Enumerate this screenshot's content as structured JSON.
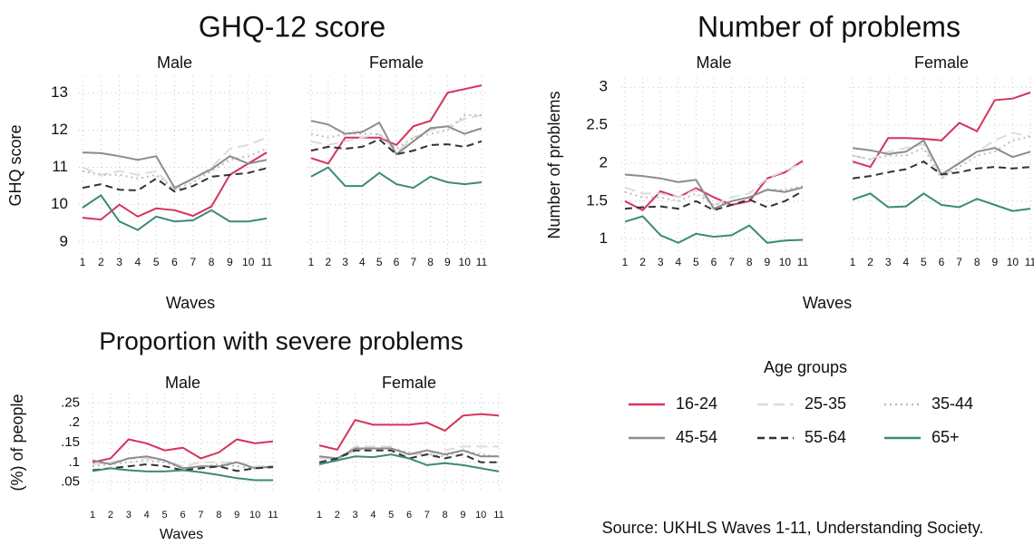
{
  "chart_data": [
    {
      "type": "line",
      "title": "GHQ-12 score",
      "ylabel": "GHQ score",
      "xlabel": "Waves",
      "x": [
        1,
        2,
        3,
        4,
        5,
        6,
        7,
        8,
        9,
        10,
        11
      ],
      "ylim": [
        8.8,
        13.3
      ],
      "yticks": [
        9,
        10,
        11,
        12,
        13
      ],
      "grid": true,
      "panels": [
        {
          "title": "Male",
          "series": [
            {
              "name": "16-24",
              "color": "#d6335a",
              "dash": "solid",
              "values": [
                9.65,
                9.6,
                10.0,
                9.68,
                9.9,
                9.85,
                9.7,
                9.95,
                10.8,
                11.1,
                11.4
              ]
            },
            {
              "name": "25-35",
              "color": "#dcdcdc",
              "dash": "long",
              "values": [
                11.0,
                10.8,
                10.9,
                10.8,
                10.9,
                10.4,
                10.7,
                11.0,
                11.5,
                11.6,
                11.8
              ]
            },
            {
              "name": "35-44",
              "color": "#bdbdbd",
              "dash": "dot",
              "values": [
                10.9,
                10.8,
                10.8,
                10.7,
                10.8,
                10.4,
                10.6,
                10.9,
                11.2,
                11.3,
                11.5
              ]
            },
            {
              "name": "45-54",
              "color": "#8c8c8c",
              "dash": "solid",
              "values": [
                11.4,
                11.38,
                11.3,
                11.2,
                11.3,
                10.45,
                10.7,
                10.95,
                11.3,
                11.1,
                11.2
              ]
            },
            {
              "name": "55-64",
              "color": "#333333",
              "dash": "dash",
              "values": [
                10.45,
                10.55,
                10.4,
                10.38,
                10.7,
                10.35,
                10.5,
                10.75,
                10.8,
                10.85,
                10.98
              ]
            },
            {
              "name": "65+",
              "color": "#3a8a7a",
              "dash": "solid",
              "values": [
                9.92,
                10.25,
                9.55,
                9.32,
                9.68,
                9.55,
                9.58,
                9.85,
                9.55,
                9.55,
                9.63
              ]
            }
          ]
        },
        {
          "title": "Female",
          "series": [
            {
              "name": "16-24",
              "color": "#d6335a",
              "dash": "solid",
              "values": [
                11.25,
                11.1,
                11.8,
                11.8,
                11.8,
                11.6,
                12.1,
                12.25,
                13.0,
                13.1,
                13.2
              ]
            },
            {
              "name": "25-35",
              "color": "#dcdcdc",
              "dash": "long",
              "values": [
                11.7,
                11.6,
                11.7,
                11.8,
                11.9,
                11.4,
                11.8,
                12.0,
                12.1,
                12.3,
                12.4
              ]
            },
            {
              "name": "35-44",
              "color": "#bdbdbd",
              "dash": "dot",
              "values": [
                11.9,
                11.8,
                11.9,
                11.9,
                11.9,
                11.5,
                11.8,
                11.9,
                12.0,
                12.4,
                12.4
              ]
            },
            {
              "name": "45-54",
              "color": "#8c8c8c",
              "dash": "solid",
              "values": [
                12.25,
                12.15,
                11.9,
                11.95,
                12.2,
                11.35,
                11.7,
                12.05,
                12.1,
                11.9,
                12.05
              ]
            },
            {
              "name": "55-64",
              "color": "#333333",
              "dash": "dash",
              "values": [
                11.45,
                11.55,
                11.5,
                11.55,
                11.75,
                11.35,
                11.45,
                11.6,
                11.62,
                11.55,
                11.7
              ]
            },
            {
              "name": "65+",
              "color": "#3a8a7a",
              "dash": "solid",
              "values": [
                10.75,
                11.0,
                10.5,
                10.5,
                10.85,
                10.55,
                10.45,
                10.75,
                10.6,
                10.55,
                10.6
              ]
            }
          ]
        }
      ]
    },
    {
      "type": "line",
      "title": "Number of problems",
      "ylabel": "Number of problems",
      "xlabel": "Waves",
      "x": [
        1,
        2,
        3,
        4,
        5,
        6,
        7,
        8,
        9,
        10,
        11
      ],
      "ylim": [
        0.9,
        3.05
      ],
      "yticks": [
        1,
        1.5,
        2,
        2.5,
        3
      ],
      "grid": true,
      "panels": [
        {
          "title": "Male",
          "series": [
            {
              "name": "16-24",
              "color": "#d6335a",
              "dash": "solid",
              "values": [
                1.5,
                1.38,
                1.63,
                1.55,
                1.67,
                1.55,
                1.45,
                1.5,
                1.8,
                1.88,
                2.03
              ]
            },
            {
              "name": "25-35",
              "color": "#dcdcdc",
              "dash": "long",
              "values": [
                1.68,
                1.6,
                1.6,
                1.55,
                1.65,
                1.45,
                1.55,
                1.6,
                1.8,
                1.9,
                2.0
              ]
            },
            {
              "name": "35-44",
              "color": "#bdbdbd",
              "dash": "dot",
              "values": [
                1.62,
                1.55,
                1.55,
                1.5,
                1.6,
                1.45,
                1.5,
                1.55,
                1.65,
                1.65,
                1.7
              ]
            },
            {
              "name": "45-54",
              "color": "#8c8c8c",
              "dash": "solid",
              "values": [
                1.85,
                1.83,
                1.8,
                1.75,
                1.78,
                1.4,
                1.5,
                1.55,
                1.65,
                1.62,
                1.68
              ]
            },
            {
              "name": "55-64",
              "color": "#333333",
              "dash": "dash",
              "values": [
                1.4,
                1.42,
                1.43,
                1.4,
                1.5,
                1.38,
                1.45,
                1.52,
                1.42,
                1.5,
                1.63
              ]
            },
            {
              "name": "65+",
              "color": "#3a8a7a",
              "dash": "solid",
              "values": [
                1.23,
                1.3,
                1.05,
                0.95,
                1.07,
                1.03,
                1.05,
                1.18,
                0.95,
                0.98,
                0.99
              ]
            }
          ]
        },
        {
          "title": "Female",
          "series": [
            {
              "name": "16-24",
              "color": "#d6335a",
              "dash": "solid",
              "values": [
                2.02,
                1.95,
                2.33,
                2.33,
                2.32,
                2.3,
                2.53,
                2.42,
                2.83,
                2.85,
                2.93
              ]
            },
            {
              "name": "25-35",
              "color": "#dcdcdc",
              "dash": "long",
              "values": [
                2.1,
                2.05,
                2.15,
                2.2,
                2.25,
                1.8,
                2.0,
                2.15,
                2.3,
                2.4,
                2.35
              ]
            },
            {
              "name": "35-44",
              "color": "#bdbdbd",
              "dash": "dot",
              "values": [
                2.1,
                2.05,
                2.1,
                2.1,
                2.2,
                1.8,
                1.95,
                2.1,
                2.15,
                2.3,
                2.35
              ]
            },
            {
              "name": "45-54",
              "color": "#8c8c8c",
              "dash": "solid",
              "values": [
                2.2,
                2.17,
                2.12,
                2.15,
                2.3,
                1.85,
                2.0,
                2.15,
                2.2,
                2.08,
                2.15
              ]
            },
            {
              "name": "55-64",
              "color": "#333333",
              "dash": "dash",
              "values": [
                1.8,
                1.83,
                1.88,
                1.92,
                2.02,
                1.85,
                1.88,
                1.93,
                1.95,
                1.93,
                1.95
              ]
            },
            {
              "name": "65+",
              "color": "#3a8a7a",
              "dash": "solid",
              "values": [
                1.52,
                1.6,
                1.42,
                1.43,
                1.6,
                1.45,
                1.42,
                1.53,
                1.45,
                1.37,
                1.4
              ]
            }
          ]
        }
      ]
    },
    {
      "type": "line",
      "title": "Proportion with severe problems",
      "ylabel": "(%) of people",
      "xlabel": "Waves",
      "x": [
        1,
        2,
        3,
        4,
        5,
        6,
        7,
        8,
        9,
        10,
        11
      ],
      "ylim": [
        0.04,
        0.26
      ],
      "yticks": [
        {
          "value": 0.05,
          "label": ".05"
        },
        {
          "value": 0.1,
          "label": ".1"
        },
        {
          "value": 0.15,
          "label": ".15"
        },
        {
          "value": 0.2,
          "label": ".2"
        },
        {
          "value": 0.25,
          "label": ".25"
        }
      ],
      "grid": true,
      "panels": [
        {
          "title": "Male",
          "series": [
            {
              "name": "16-24",
              "color": "#d6335a",
              "dash": "solid",
              "values": [
                0.1,
                0.11,
                0.158,
                0.148,
                0.13,
                0.137,
                0.11,
                0.125,
                0.158,
                0.148,
                0.153
              ]
            },
            {
              "name": "25-35",
              "color": "#dcdcdc",
              "dash": "long",
              "values": [
                0.095,
                0.1,
                0.11,
                0.11,
                0.105,
                0.09,
                0.1,
                0.1,
                0.1,
                0.09,
                0.09
              ]
            },
            {
              "name": "35-44",
              "color": "#bdbdbd",
              "dash": "dot",
              "values": [
                0.09,
                0.095,
                0.1,
                0.105,
                0.1,
                0.085,
                0.09,
                0.095,
                0.09,
                0.085,
                0.088
              ]
            },
            {
              "name": "45-54",
              "color": "#8c8c8c",
              "dash": "solid",
              "values": [
                0.105,
                0.095,
                0.11,
                0.115,
                0.105,
                0.085,
                0.09,
                0.09,
                0.1,
                0.085,
                0.09
              ]
            },
            {
              "name": "55-64",
              "color": "#333333",
              "dash": "dash",
              "values": [
                0.08,
                0.085,
                0.09,
                0.095,
                0.09,
                0.08,
                0.085,
                0.09,
                0.078,
                0.085,
                0.088
              ]
            },
            {
              "name": "65+",
              "color": "#3a8a7a",
              "dash": "solid",
              "values": [
                0.078,
                0.085,
                0.08,
                0.077,
                0.077,
                0.08,
                0.075,
                0.068,
                0.06,
                0.055,
                0.055
              ]
            }
          ]
        },
        {
          "title": "Female",
          "series": [
            {
              "name": "16-24",
              "color": "#d6335a",
              "dash": "solid",
              "values": [
                0.143,
                0.132,
                0.207,
                0.195,
                0.195,
                0.195,
                0.2,
                0.18,
                0.218,
                0.222,
                0.218
              ]
            },
            {
              "name": "25-35",
              "color": "#dcdcdc",
              "dash": "long",
              "values": [
                0.11,
                0.11,
                0.14,
                0.14,
                0.14,
                0.12,
                0.12,
                0.13,
                0.14,
                0.14,
                0.14
              ]
            },
            {
              "name": "35-44",
              "color": "#bdbdbd",
              "dash": "dot",
              "values": [
                0.1,
                0.105,
                0.13,
                0.135,
                0.135,
                0.125,
                0.12,
                0.115,
                0.13,
                0.12,
                0.115
              ]
            },
            {
              "name": "45-54",
              "color": "#8c8c8c",
              "dash": "solid",
              "values": [
                0.115,
                0.11,
                0.135,
                0.135,
                0.135,
                0.12,
                0.13,
                0.12,
                0.13,
                0.115,
                0.115
              ]
            },
            {
              "name": "55-64",
              "color": "#333333",
              "dash": "dash",
              "values": [
                0.1,
                0.11,
                0.13,
                0.13,
                0.13,
                0.11,
                0.12,
                0.11,
                0.12,
                0.1,
                0.1
              ]
            },
            {
              "name": "65+",
              "color": "#3a8a7a",
              "dash": "solid",
              "values": [
                0.095,
                0.105,
                0.115,
                0.113,
                0.12,
                0.11,
                0.093,
                0.098,
                0.093,
                0.085,
                0.077
              ]
            }
          ]
        }
      ]
    }
  ],
  "legend": {
    "title": "Age groups"
  },
  "source": "Source: UKHLS Waves 1-11, Understanding Society."
}
